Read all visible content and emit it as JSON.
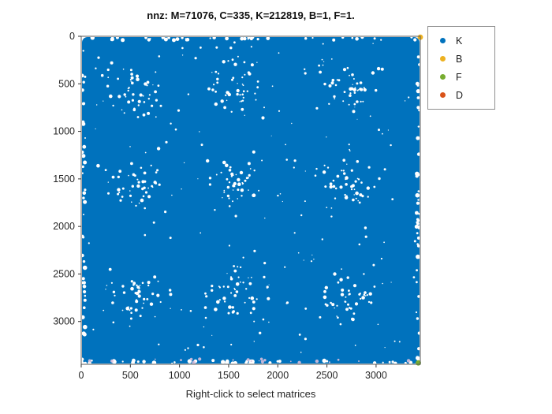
{
  "title": "nnz: M=71076, C=335, K=212819, B=1, F=1.",
  "xlabel": "Right-click to select matrices",
  "legend": {
    "entries": [
      {
        "label": "K",
        "color": "#0072BD"
      },
      {
        "label": "B",
        "color": "#EDB120"
      },
      {
        "label": "F",
        "color": "#77AC30"
      },
      {
        "label": "D",
        "color": "#D95319"
      }
    ]
  },
  "chart_data": {
    "type": "scatter",
    "subtype": "spy-sparsity-pattern",
    "title": "nnz: M=71076, C=335, K=212819, B=1, F=1.",
    "xlabel": "Right-click to select matrices",
    "ylabel": "",
    "xlim": [
      0,
      3450
    ],
    "ylim": [
      0,
      3450
    ],
    "y_axis_reversed": true,
    "x_ticks": [
      0,
      500,
      1000,
      1500,
      2000,
      2500,
      3000
    ],
    "y_ticks": [
      0,
      500,
      1000,
      1500,
      2000,
      2500,
      3000
    ],
    "grid": false,
    "legend_position": "outside-top-right",
    "title_counts": {
      "M": 71076,
      "C": 335,
      "K": 212819,
      "B": 1,
      "F": 1
    },
    "series": [
      {
        "name": "K",
        "color": "#0072BD",
        "nnz": 212819,
        "description": "dense sparsity pattern filling the whole matrix, with a 3x3 grid of lighter speckled blocks and ragged white edges"
      },
      {
        "name": "B",
        "color": "#EDB120",
        "nnz": 1,
        "points": [
          [
            3450,
            10
          ]
        ]
      },
      {
        "name": "F",
        "color": "#77AC30",
        "nnz": 1,
        "points": [
          [
            3430,
            3435
          ]
        ]
      },
      {
        "name": "D",
        "color": "#D95319",
        "nnz": 0,
        "points": []
      }
    ]
  }
}
